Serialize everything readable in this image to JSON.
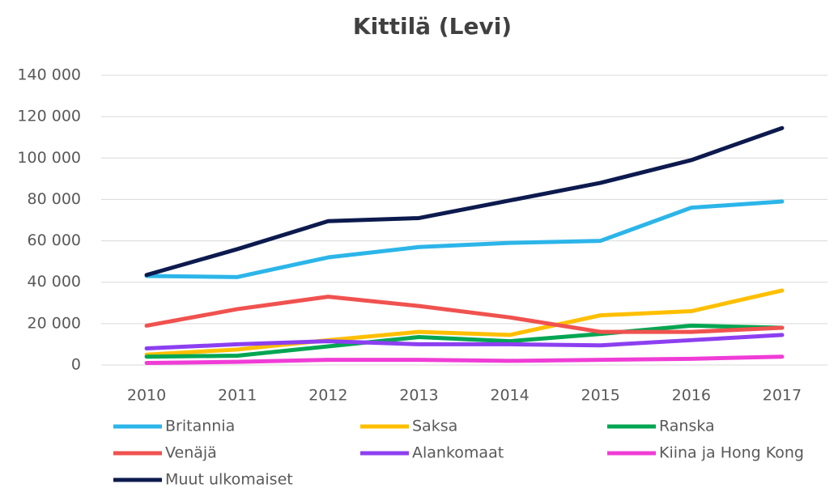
{
  "chart_data": {
    "type": "line",
    "title": "Kittilä (Levi)",
    "categories": [
      "2010",
      "2011",
      "2012",
      "2013",
      "2014",
      "2015",
      "2016",
      "2017"
    ],
    "series": [
      {
        "name": "Britannia",
        "color": "#2cb5e9",
        "values": [
          43000,
          42500,
          52000,
          57000,
          59000,
          60000,
          76000,
          79000
        ]
      },
      {
        "name": "Saksa",
        "color": "#ffbf00",
        "values": [
          5000,
          7500,
          12000,
          16000,
          14500,
          24000,
          26000,
          36000
        ]
      },
      {
        "name": "Ranska",
        "color": "#00a652",
        "values": [
          4000,
          4500,
          9000,
          13500,
          11500,
          15000,
          19000,
          18000
        ]
      },
      {
        "name": "Venäjä",
        "color": "#f0524f",
        "values": [
          19000,
          27000,
          33000,
          28500,
          23000,
          16000,
          16000,
          18000
        ]
      },
      {
        "name": "Alankomaat",
        "color": "#8c3ff0",
        "values": [
          8000,
          10000,
          11500,
          10000,
          10000,
          9500,
          12000,
          14500
        ]
      },
      {
        "name": "Kiina ja Hong Kong",
        "color": "#f03cd6",
        "values": [
          1000,
          1500,
          2500,
          2500,
          2000,
          2500,
          3000,
          4000
        ]
      },
      {
        "name": "Muut ulkomaiset",
        "color": "#0c1a4e",
        "values": [
          43500,
          56000,
          69500,
          71000,
          79500,
          88000,
          99000,
          114500
        ]
      }
    ],
    "ylim": [
      0,
      140000
    ],
    "yticks": [
      0,
      {
        "value": 20000,
        "label": "20 000"
      },
      {
        "value": 40000,
        "label": "40 000"
      },
      {
        "value": 60000,
        "label": "60 000"
      },
      {
        "value": 80000,
        "label": "80 000"
      },
      {
        "value": 100000,
        "label": "100 000"
      },
      {
        "value": 120000,
        "label": "120 000"
      },
      {
        "value": 140000,
        "label": "140 000"
      }
    ],
    "grid": true
  }
}
